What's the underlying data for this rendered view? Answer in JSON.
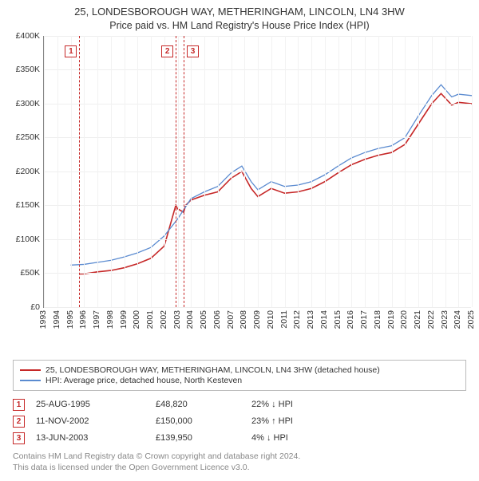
{
  "title": "25, LONDESBOROUGH WAY, METHERINGHAM, LINCOLN, LN4 3HW",
  "subtitle": "Price paid vs. HM Land Registry's House Price Index (HPI)",
  "chart": {
    "type": "line",
    "background_color": "#ffffff",
    "grid_color": "#eeeeee",
    "axis_color": "#888888",
    "label_fontsize": 10.5,
    "title_fontsize": 13,
    "x": {
      "min": 1993,
      "max": 2025,
      "tick_step": 1,
      "rotate_deg": -90
    },
    "y": {
      "min": 0,
      "max": 400000,
      "tick_step": 50000,
      "prefix": "£",
      "format": "K"
    },
    "series": [
      {
        "name": "25, LONDESBOROUGH WAY, METHERINGHAM, LINCOLN, LN4 3HW (detached house)",
        "color": "#c62828",
        "width": 1.6,
        "data": [
          [
            1995.65,
            48820
          ],
          [
            1996,
            49000
          ],
          [
            1997,
            52000
          ],
          [
            1998,
            54000
          ],
          [
            1999,
            58000
          ],
          [
            2000,
            64000
          ],
          [
            2001,
            72000
          ],
          [
            2002,
            90000
          ],
          [
            2002.86,
            150000
          ],
          [
            2003,
            145000
          ],
          [
            2003.45,
            139950
          ],
          [
            2003.6,
            150000
          ],
          [
            2004,
            158000
          ],
          [
            2005,
            165000
          ],
          [
            2006,
            170000
          ],
          [
            2007,
            190000
          ],
          [
            2007.8,
            200000
          ],
          [
            2008.5,
            175000
          ],
          [
            2009,
            163000
          ],
          [
            2010,
            175000
          ],
          [
            2011,
            168000
          ],
          [
            2012,
            170000
          ],
          [
            2013,
            175000
          ],
          [
            2014,
            185000
          ],
          [
            2015,
            198000
          ],
          [
            2016,
            210000
          ],
          [
            2017,
            218000
          ],
          [
            2018,
            224000
          ],
          [
            2019,
            228000
          ],
          [
            2020,
            240000
          ],
          [
            2021,
            270000
          ],
          [
            2022,
            300000
          ],
          [
            2022.7,
            315000
          ],
          [
            2023.5,
            298000
          ],
          [
            2024,
            302000
          ],
          [
            2025,
            300000
          ]
        ]
      },
      {
        "name": "HPI: Average price, detached house, North Kesteven",
        "color": "#5b8bd0",
        "width": 1.3,
        "data": [
          [
            1995,
            62000
          ],
          [
            1996,
            63000
          ],
          [
            1997,
            66000
          ],
          [
            1998,
            69000
          ],
          [
            1999,
            74000
          ],
          [
            2000,
            80000
          ],
          [
            2001,
            88000
          ],
          [
            2002,
            105000
          ],
          [
            2003,
            130000
          ],
          [
            2004,
            160000
          ],
          [
            2005,
            170000
          ],
          [
            2006,
            178000
          ],
          [
            2007,
            198000
          ],
          [
            2007.8,
            208000
          ],
          [
            2008.5,
            185000
          ],
          [
            2009,
            173000
          ],
          [
            2010,
            185000
          ],
          [
            2011,
            178000
          ],
          [
            2012,
            180000
          ],
          [
            2013,
            185000
          ],
          [
            2014,
            195000
          ],
          [
            2015,
            208000
          ],
          [
            2016,
            220000
          ],
          [
            2017,
            228000
          ],
          [
            2018,
            234000
          ],
          [
            2019,
            238000
          ],
          [
            2020,
            250000
          ],
          [
            2021,
            282000
          ],
          [
            2022,
            312000
          ],
          [
            2022.7,
            328000
          ],
          [
            2023.5,
            310000
          ],
          [
            2024,
            314000
          ],
          [
            2025,
            312000
          ]
        ]
      }
    ],
    "markers": [
      {
        "id": "1",
        "x": 1995.65
      },
      {
        "id": "2",
        "x": 2002.86
      },
      {
        "id": "3",
        "x": 2003.45
      }
    ],
    "marker_color": "#c62828",
    "marker_top_y": 385000
  },
  "transactions": [
    {
      "id": "1",
      "date": "25-AUG-1995",
      "price": "£48,820",
      "delta": "22% ↓ HPI"
    },
    {
      "id": "2",
      "date": "11-NOV-2002",
      "price": "£150,000",
      "delta": "23% ↑ HPI"
    },
    {
      "id": "3",
      "date": "13-JUN-2003",
      "price": "£139,950",
      "delta": "4% ↓ HPI"
    }
  ],
  "footer": {
    "line1": "Contains HM Land Registry data © Crown copyright and database right 2024.",
    "line2": "This data is licensed under the Open Government Licence v3.0."
  },
  "footer_color": "#888888"
}
